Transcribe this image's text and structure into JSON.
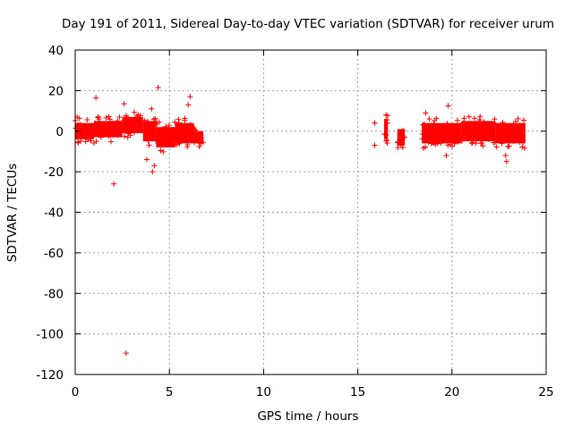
{
  "chart_data": {
    "type": "scatter",
    "title": "Day 191 of 2011, Sidereal Day-to-day VTEC variation (SDTVAR) for receiver urum",
    "xlabel": "GPS time / hours",
    "ylabel": "SDTVAR / TECUs",
    "xlim": [
      0,
      25
    ],
    "ylim": [
      -120,
      40
    ],
    "xticks": [
      0,
      5,
      10,
      15,
      20,
      25
    ],
    "yticks": [
      -120,
      -100,
      -80,
      -60,
      -40,
      -20,
      0,
      20,
      40
    ],
    "grid": true,
    "marker": "+",
    "colors": {
      "series": "#ff0000",
      "grid": "#a0a0a0",
      "axis": "#000000"
    },
    "series": [
      {
        "name": "SDTVAR",
        "band_segments": [
          {
            "x_start": 0.0,
            "x_end": 1.0,
            "y_center": 0,
            "y_half_range": 4
          },
          {
            "x_start": 1.0,
            "x_end": 2.5,
            "y_center": 1,
            "y_half_range": 4
          },
          {
            "x_start": 2.5,
            "x_end": 3.6,
            "y_center": 3,
            "y_half_range": 4
          },
          {
            "x_start": 3.6,
            "x_end": 4.3,
            "y_center": 0,
            "y_half_range": 5
          },
          {
            "x_start": 4.3,
            "x_end": 5.3,
            "y_center": -3,
            "y_half_range": 5
          },
          {
            "x_start": 5.3,
            "x_end": 6.3,
            "y_center": -1,
            "y_half_range": 5
          },
          {
            "x_start": 6.3,
            "x_end": 6.8,
            "y_center": -3,
            "y_half_range": 3
          },
          {
            "x_start": 16.4,
            "x_end": 16.6,
            "y_center": 1,
            "y_half_range": 5
          },
          {
            "x_start": 17.1,
            "x_end": 17.5,
            "y_center": -3,
            "y_half_range": 4
          },
          {
            "x_start": 18.4,
            "x_end": 20.5,
            "y_center": -1,
            "y_half_range": 5
          },
          {
            "x_start": 20.5,
            "x_end": 22.3,
            "y_center": 0,
            "y_half_range": 5
          },
          {
            "x_start": 22.3,
            "x_end": 23.9,
            "y_center": -1,
            "y_half_range": 5
          }
        ],
        "outliers": [
          {
            "x": 1.1,
            "y": 16.5
          },
          {
            "x": 2.05,
            "y": -26
          },
          {
            "x": 2.7,
            "y": -109.5
          },
          {
            "x": 4.4,
            "y": 21.5
          },
          {
            "x": 4.1,
            "y": -20
          },
          {
            "x": 4.2,
            "y": -17
          },
          {
            "x": 4.05,
            "y": 11
          },
          {
            "x": 3.8,
            "y": -14
          },
          {
            "x": 6.1,
            "y": 17
          },
          {
            "x": 6.0,
            "y": 13
          },
          {
            "x": 2.6,
            "y": 13.5
          },
          {
            "x": 0.1,
            "y": 7
          },
          {
            "x": 15.9,
            "y": -7
          },
          {
            "x": 15.9,
            "y": 4
          },
          {
            "x": 16.5,
            "y": 8
          },
          {
            "x": 17.3,
            "y": -7
          },
          {
            "x": 19.8,
            "y": 12.5
          },
          {
            "x": 19.7,
            "y": -12
          },
          {
            "x": 22.9,
            "y": -15
          },
          {
            "x": 22.85,
            "y": -12
          },
          {
            "x": 18.6,
            "y": 9
          }
        ]
      }
    ]
  }
}
